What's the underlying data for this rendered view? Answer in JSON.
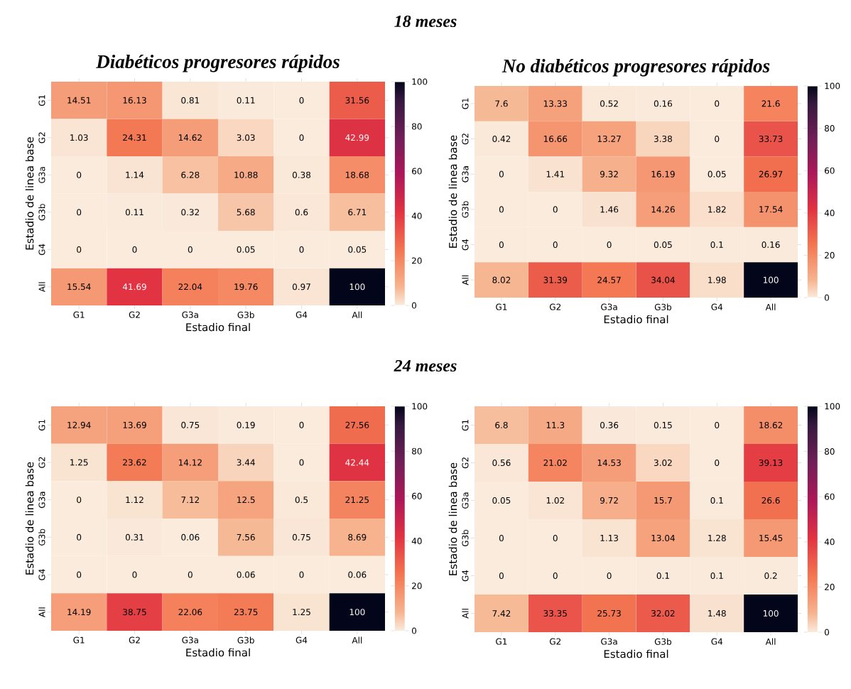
{
  "chart_data": [
    {
      "type": "heatmap",
      "title": "Diabéticos progresores rápidos",
      "annotations": [
        "18 meses"
      ],
      "xlabel": "Estadio final",
      "ylabel": "Estadio de linea base",
      "categories": [
        "G1",
        "G2",
        "G3a",
        "G3b",
        "G4",
        "All"
      ],
      "y_categories": [
        "G1",
        "G2",
        "G3a",
        "G3b",
        "G4",
        "All"
      ],
      "cells": [
        [
          14.51,
          16.13,
          0.81,
          0.11,
          0,
          31.56
        ],
        [
          1.03,
          24.31,
          14.62,
          3.03,
          0,
          42.99
        ],
        [
          0,
          1.14,
          6.28,
          10.88,
          0.38,
          18.68
        ],
        [
          0,
          0.11,
          0.32,
          5.68,
          0.6,
          6.71
        ],
        [
          0,
          0,
          0,
          0.05,
          0,
          0.05
        ],
        [
          15.54,
          41.69,
          22.04,
          19.76,
          0.97,
          100
        ]
      ],
      "data_labels": true,
      "clim": [
        0,
        100
      ],
      "cticks": [
        0,
        20,
        40,
        60,
        80,
        100
      ]
    },
    {
      "type": "heatmap",
      "title": "No diabéticos progresores rápidos",
      "xlabel": "Estadio final",
      "ylabel": "Estadio de linea base",
      "categories": [
        "G1",
        "G2",
        "G3a",
        "G3b",
        "G4",
        "All"
      ],
      "y_categories": [
        "G1",
        "G2",
        "G3a",
        "G3b",
        "G4",
        "All"
      ],
      "cells": [
        [
          7.6,
          13.33,
          0.52,
          0.16,
          0,
          21.6
        ],
        [
          0.42,
          16.66,
          13.27,
          3.38,
          0,
          33.73
        ],
        [
          0,
          1.41,
          9.32,
          16.19,
          0.05,
          26.97
        ],
        [
          0,
          0,
          1.46,
          14.26,
          1.82,
          17.54
        ],
        [
          0,
          0,
          0,
          0.05,
          0.1,
          0.16
        ],
        [
          8.02,
          31.39,
          24.57,
          34.04,
          1.98,
          100
        ]
      ],
      "data_labels": true,
      "clim": [
        0,
        100
      ],
      "cticks": [
        0,
        20,
        40,
        60,
        80,
        100
      ]
    },
    {
      "type": "heatmap",
      "annotations": [
        "24 meses"
      ],
      "xlabel": "Estadio final",
      "ylabel": "Estadio de linea base",
      "categories": [
        "G1",
        "G2",
        "G3a",
        "G3b",
        "G4",
        "All"
      ],
      "y_categories": [
        "G1",
        "G2",
        "G3a",
        "G3b",
        "G4",
        "All"
      ],
      "cells": [
        [
          12.94,
          13.69,
          0.75,
          0.19,
          0,
          27.56
        ],
        [
          1.25,
          23.62,
          14.12,
          3.44,
          0,
          42.44
        ],
        [
          0,
          1.12,
          7.12,
          12.5,
          0.5,
          21.25
        ],
        [
          0,
          0.31,
          0.06,
          7.56,
          0.75,
          8.69
        ],
        [
          0,
          0,
          0,
          0.06,
          0,
          0.06
        ],
        [
          14.19,
          38.75,
          22.06,
          23.75,
          1.25,
          100
        ]
      ],
      "data_labels": true,
      "clim": [
        0,
        100
      ],
      "cticks": [
        0,
        20,
        40,
        60,
        80,
        100
      ]
    },
    {
      "type": "heatmap",
      "xlabel": "Estadio final",
      "ylabel": "Estadio de linea base",
      "categories": [
        "G1",
        "G2",
        "G3a",
        "G3b",
        "G4",
        "All"
      ],
      "y_categories": [
        "G1",
        "G2",
        "G3a",
        "G3b",
        "G4",
        "All"
      ],
      "cells": [
        [
          6.8,
          11.3,
          0.36,
          0.15,
          0,
          18.62
        ],
        [
          0.56,
          21.02,
          14.53,
          3.02,
          0,
          39.13
        ],
        [
          0.05,
          1.02,
          9.72,
          15.7,
          0.1,
          26.6
        ],
        [
          0,
          0,
          1.13,
          13.04,
          1.28,
          15.45
        ],
        [
          0,
          0,
          0,
          0.1,
          0.1,
          0.2
        ],
        [
          7.42,
          33.35,
          25.73,
          32.02,
          1.48,
          100
        ]
      ],
      "data_labels": true,
      "clim": [
        0,
        100
      ],
      "cticks": [
        0,
        20,
        40,
        60,
        80,
        100
      ]
    }
  ]
}
